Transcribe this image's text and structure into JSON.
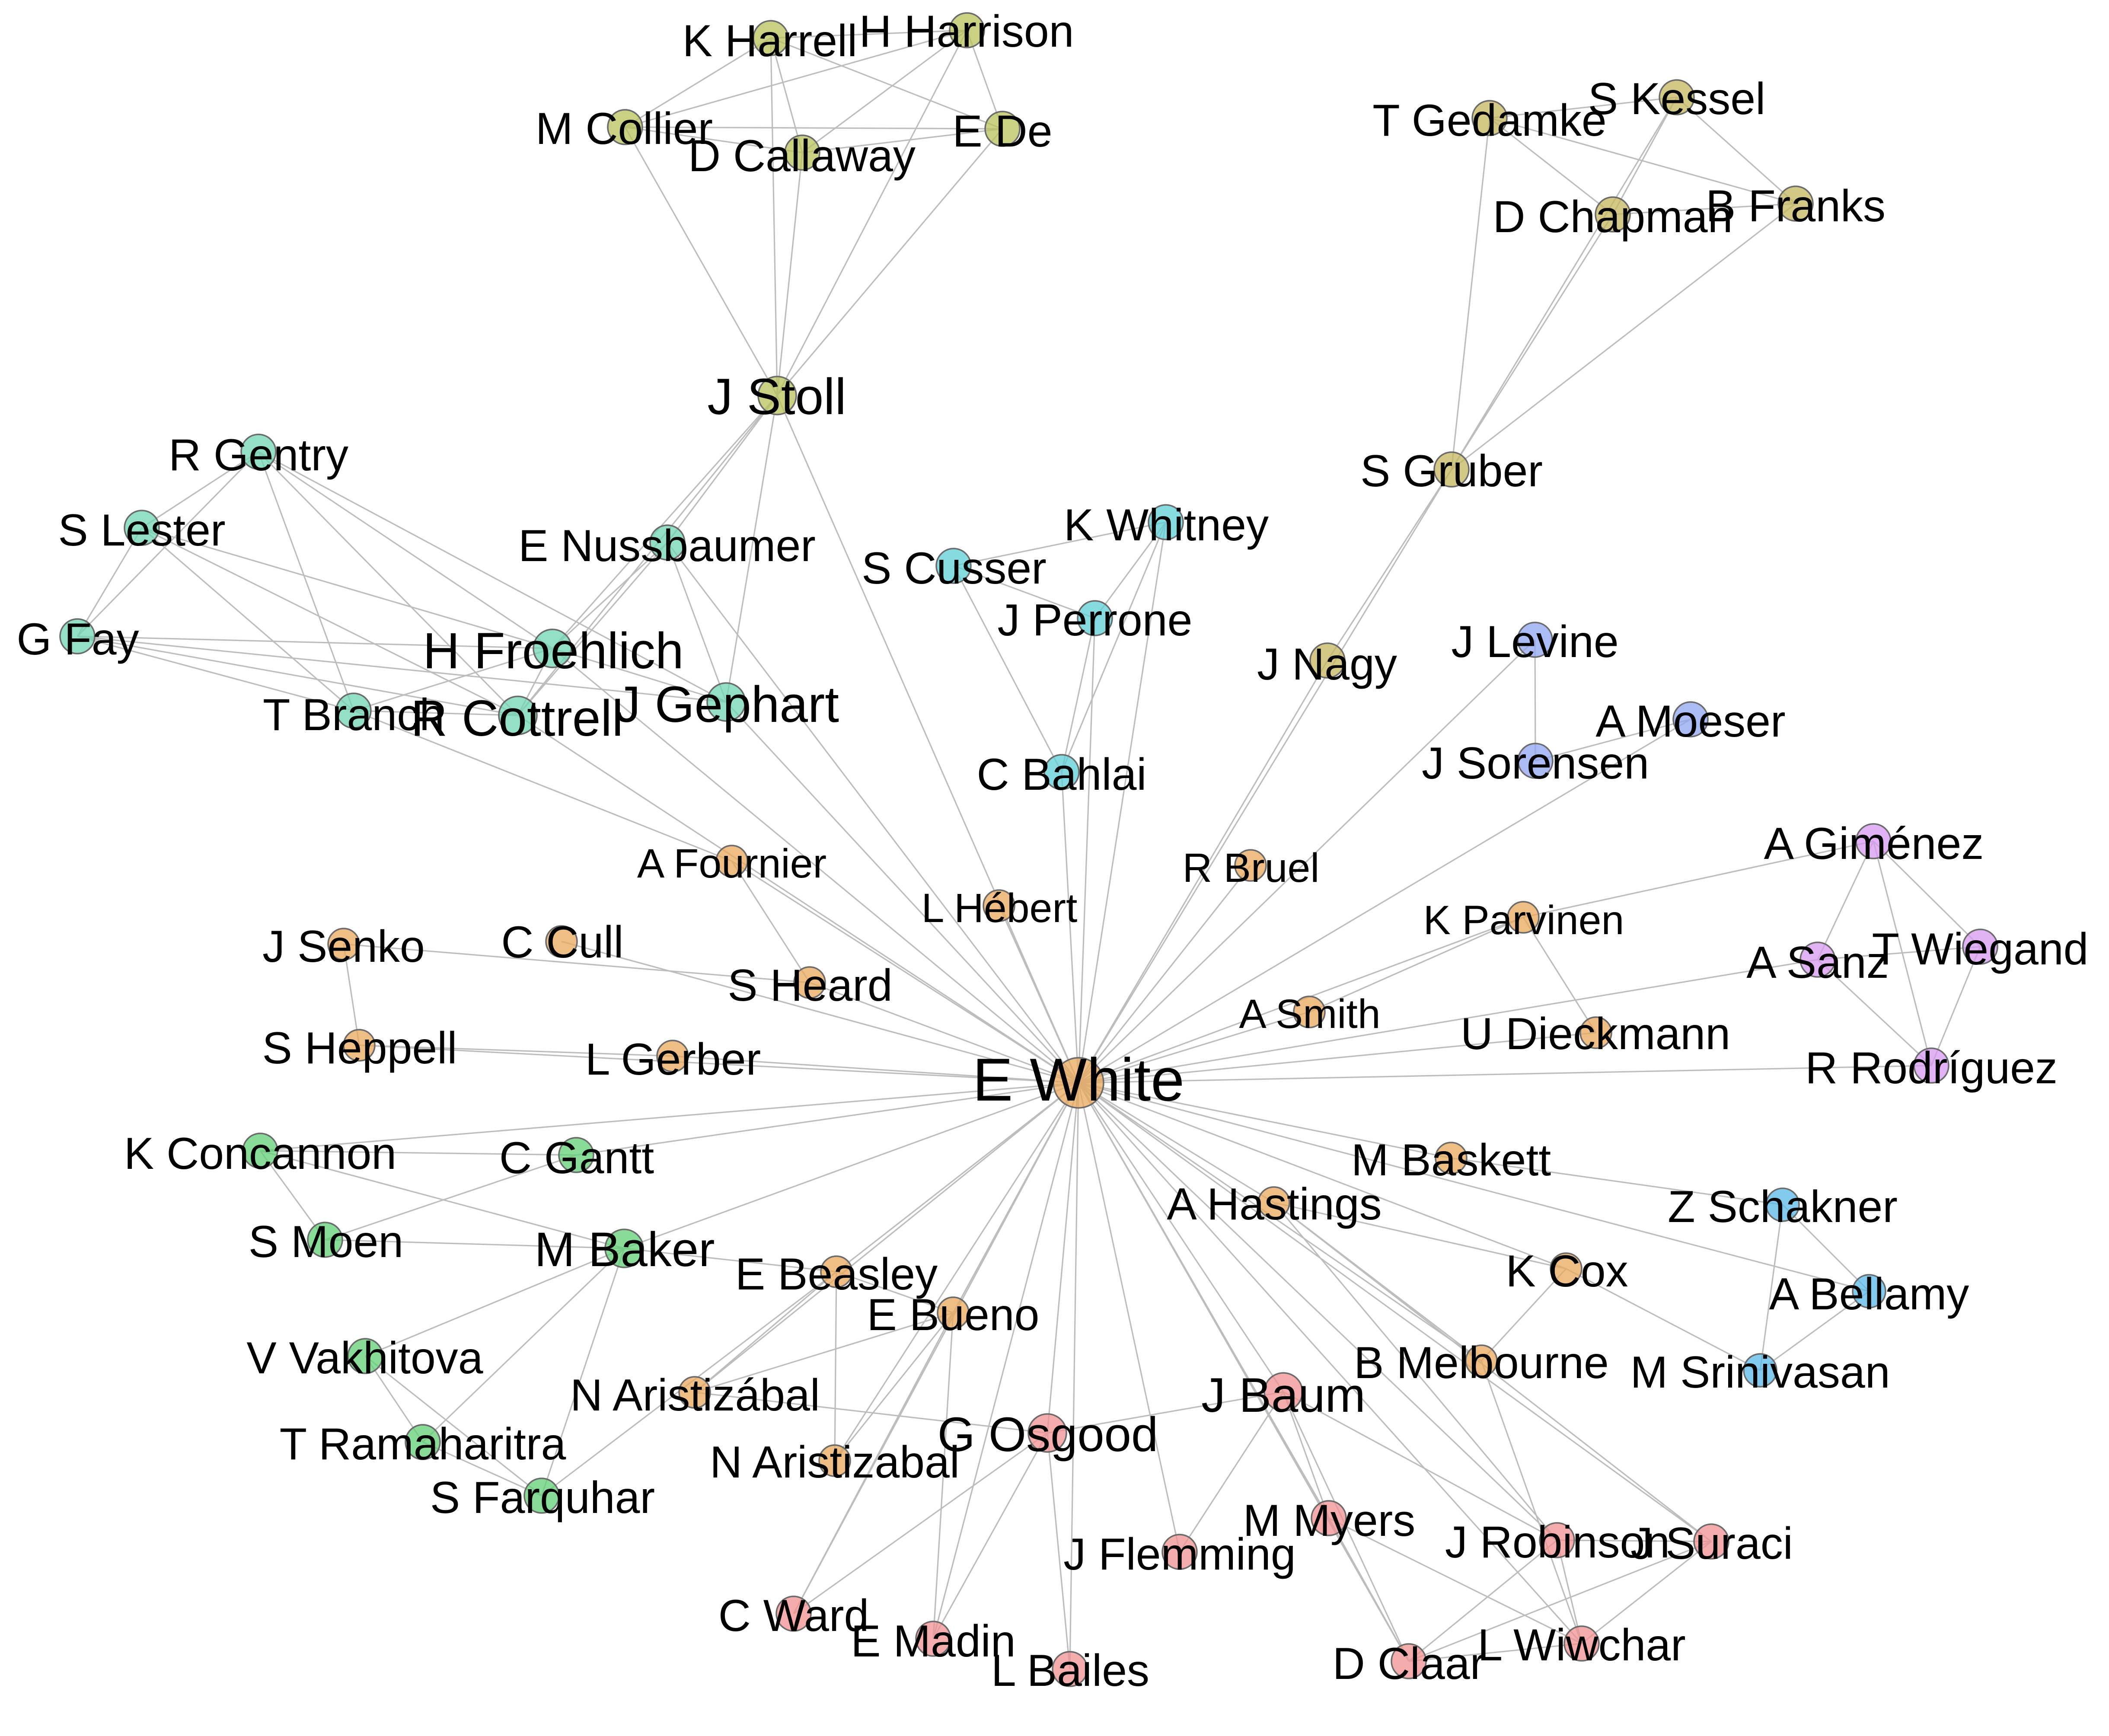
{
  "diagram": {
    "type": "network",
    "group_colors": {
      "orange": "#e8a85c",
      "olive": "#b8c25a",
      "khaki": "#c4b65c",
      "teal": "#6fd6b4",
      "cyan": "#5dcfd6",
      "blue": "#8fa6f0",
      "purple": "#d89af0",
      "sky": "#5ab8ea",
      "green": "#62cf76",
      "pink": "#f19090"
    },
    "nodes": [
      {
        "id": "ewhite",
        "label": "E White",
        "group": "orange"
      },
      {
        "id": "kharrell",
        "label": "K Harrell",
        "group": "olive"
      },
      {
        "id": "hharrison",
        "label": "H Harrison",
        "group": "olive"
      },
      {
        "id": "mcollier",
        "label": "M Collier",
        "group": "olive"
      },
      {
        "id": "dcallaway",
        "label": "D Callaway",
        "group": "olive"
      },
      {
        "id": "ede",
        "label": "E De",
        "group": "olive"
      },
      {
        "id": "jstoll",
        "label": "J Stoll",
        "group": "olive"
      },
      {
        "id": "tgedamke",
        "label": "T Gedamke",
        "group": "khaki"
      },
      {
        "id": "skessel",
        "label": "S Kessel",
        "group": "khaki"
      },
      {
        "id": "dchapman",
        "label": "D Chapman",
        "group": "khaki"
      },
      {
        "id": "bfranks",
        "label": "B Franks",
        "group": "khaki"
      },
      {
        "id": "sgruber",
        "label": "S Gruber",
        "group": "khaki"
      },
      {
        "id": "jnagy",
        "label": "J Nagy",
        "group": "khaki"
      },
      {
        "id": "rgentry",
        "label": "R Gentry",
        "group": "teal"
      },
      {
        "id": "slester",
        "label": "S Lester",
        "group": "teal"
      },
      {
        "id": "gfay",
        "label": "G Fay",
        "group": "teal"
      },
      {
        "id": "enussbaumer",
        "label": "E Nussbaumer",
        "group": "teal"
      },
      {
        "id": "hfroehlich",
        "label": "H Froehlich",
        "group": "teal"
      },
      {
        "id": "tbranch",
        "label": "T Branch",
        "group": "teal"
      },
      {
        "id": "rcottrell",
        "label": "R Cottrell",
        "group": "teal"
      },
      {
        "id": "jgephart",
        "label": "J Gephart",
        "group": "teal"
      },
      {
        "id": "kwhitney",
        "label": "K Whitney",
        "group": "cyan"
      },
      {
        "id": "scusser",
        "label": "S Cusser",
        "group": "cyan"
      },
      {
        "id": "jperrone",
        "label": "J Perrone",
        "group": "cyan"
      },
      {
        "id": "cbahlai",
        "label": "C Bahlai",
        "group": "cyan"
      },
      {
        "id": "jlevine",
        "label": "J Levine",
        "group": "blue"
      },
      {
        "id": "amoeser",
        "label": "A Moeser",
        "group": "blue"
      },
      {
        "id": "jsorensen",
        "label": "J Sorensen",
        "group": "blue"
      },
      {
        "id": "agimenez",
        "label": "A Giménez",
        "group": "purple"
      },
      {
        "id": "asanz",
        "label": "A Sanz",
        "group": "purple"
      },
      {
        "id": "twiegand",
        "label": "T Wiegand",
        "group": "purple"
      },
      {
        "id": "rrodriguez",
        "label": "R Rodríguez",
        "group": "purple"
      },
      {
        "id": "afournier",
        "label": "A Fournier",
        "group": "orange"
      },
      {
        "id": "lhebert",
        "label": "L Hébert",
        "group": "orange"
      },
      {
        "id": "rbruel",
        "label": "R Bruel",
        "group": "orange"
      },
      {
        "id": "kparvinen",
        "label": "K Parvinen",
        "group": "orange"
      },
      {
        "id": "jsenko",
        "label": "J Senko",
        "group": "orange"
      },
      {
        "id": "ccull",
        "label": "C Cull",
        "group": "orange"
      },
      {
        "id": "sheard",
        "label": "S Heard",
        "group": "orange"
      },
      {
        "id": "asmith",
        "label": "A Smith",
        "group": "orange"
      },
      {
        "id": "udieckmann",
        "label": "U Dieckmann",
        "group": "orange"
      },
      {
        "id": "sheppell",
        "label": "S Heppell",
        "group": "orange"
      },
      {
        "id": "lgerber",
        "label": "L Gerber",
        "group": "orange"
      },
      {
        "id": "mbaskett",
        "label": "M Baskett",
        "group": "orange"
      },
      {
        "id": "ahastings",
        "label": "A Hastings",
        "group": "orange"
      },
      {
        "id": "kcox",
        "label": "K Cox",
        "group": "orange"
      },
      {
        "id": "bmelbourne",
        "label": "B Melbourne",
        "group": "orange"
      },
      {
        "id": "ebeasley",
        "label": "E Beasley",
        "group": "orange"
      },
      {
        "id": "ebueno",
        "label": "E Bueno",
        "group": "orange"
      },
      {
        "id": "naristizabal1",
        "label": "N Aristizábal",
        "group": "orange"
      },
      {
        "id": "naristizabal2",
        "label": "N Aristizabal",
        "group": "orange"
      },
      {
        "id": "zschakner",
        "label": "Z Schakner",
        "group": "sky"
      },
      {
        "id": "abellamy",
        "label": "A Bellamy",
        "group": "sky"
      },
      {
        "id": "msrinivasan",
        "label": "M Srinivasan",
        "group": "sky"
      },
      {
        "id": "kconcannon",
        "label": "K Concannon",
        "group": "green"
      },
      {
        "id": "cgantt",
        "label": "C Gantt",
        "group": "green"
      },
      {
        "id": "smoen",
        "label": "S Moen",
        "group": "green"
      },
      {
        "id": "mbaker",
        "label": "M Baker",
        "group": "green"
      },
      {
        "id": "vvakhitova",
        "label": "V Vakhitova",
        "group": "green"
      },
      {
        "id": "tramaharitra",
        "label": "T Ramaharitra",
        "group": "green"
      },
      {
        "id": "sfarquhar",
        "label": "S Farquhar",
        "group": "green"
      },
      {
        "id": "jbaum",
        "label": "J Baum",
        "group": "pink"
      },
      {
        "id": "gosgood",
        "label": "G Osgood",
        "group": "pink"
      },
      {
        "id": "mmyers",
        "label": "M Myers",
        "group": "pink"
      },
      {
        "id": "jflemming",
        "label": "J Flemming",
        "group": "pink"
      },
      {
        "id": "jrobinson",
        "label": "J Robinson",
        "group": "pink"
      },
      {
        "id": "jsuraci",
        "label": "J Suraci",
        "group": "pink"
      },
      {
        "id": "cward",
        "label": "C Ward",
        "group": "pink"
      },
      {
        "id": "emadin",
        "label": "E Madin",
        "group": "pink"
      },
      {
        "id": "lbailes",
        "label": "L Bailes",
        "group": "pink"
      },
      {
        "id": "dclaar",
        "label": "D Claar",
        "group": "pink"
      },
      {
        "id": "lwiwchar",
        "label": "L Wiwchar",
        "group": "pink"
      }
    ],
    "edges": [
      [
        "kharrell",
        "hharrison"
      ],
      [
        "kharrell",
        "mcollier"
      ],
      [
        "kharrell",
        "dcallaway"
      ],
      [
        "kharrell",
        "ede"
      ],
      [
        "kharrell",
        "jstoll"
      ],
      [
        "hharrison",
        "mcollier"
      ],
      [
        "hharrison",
        "dcallaway"
      ],
      [
        "hharrison",
        "ede"
      ],
      [
        "hharrison",
        "jstoll"
      ],
      [
        "mcollier",
        "dcallaway"
      ],
      [
        "mcollier",
        "ede"
      ],
      [
        "mcollier",
        "jstoll"
      ],
      [
        "dcallaway",
        "ede"
      ],
      [
        "dcallaway",
        "jstoll"
      ],
      [
        "ede",
        "jstoll"
      ],
      [
        "jstoll",
        "hfroehlich"
      ],
      [
        "jstoll",
        "rcottrell"
      ],
      [
        "jstoll",
        "enussbaumer"
      ],
      [
        "jstoll",
        "jgephart"
      ],
      [
        "jstoll",
        "ewhite"
      ],
      [
        "tgedamke",
        "skessel"
      ],
      [
        "tgedamke",
        "dchapman"
      ],
      [
        "tgedamke",
        "bfranks"
      ],
      [
        "tgedamke",
        "sgruber"
      ],
      [
        "skessel",
        "dchapman"
      ],
      [
        "skessel",
        "bfranks"
      ],
      [
        "skessel",
        "sgruber"
      ],
      [
        "dchapman",
        "bfranks"
      ],
      [
        "dchapman",
        "sgruber"
      ],
      [
        "bfranks",
        "sgruber"
      ],
      [
        "sgruber",
        "jnagy"
      ],
      [
        "sgruber",
        "ewhite"
      ],
      [
        "jnagy",
        "ewhite"
      ],
      [
        "rgentry",
        "slester"
      ],
      [
        "rgentry",
        "gfay"
      ],
      [
        "rgentry",
        "hfroehlich"
      ],
      [
        "rgentry",
        "tbranch"
      ],
      [
        "rgentry",
        "rcottrell"
      ],
      [
        "rgentry",
        "jgephart"
      ],
      [
        "slester",
        "gfay"
      ],
      [
        "slester",
        "hfroehlich"
      ],
      [
        "slester",
        "tbranch"
      ],
      [
        "slester",
        "rcottrell"
      ],
      [
        "gfay",
        "hfroehlich"
      ],
      [
        "gfay",
        "tbranch"
      ],
      [
        "gfay",
        "rcottrell"
      ],
      [
        "gfay",
        "jgephart"
      ],
      [
        "enussbaumer",
        "hfroehlich"
      ],
      [
        "enussbaumer",
        "rcottrell"
      ],
      [
        "enussbaumer",
        "jgephart"
      ],
      [
        "enussbaumer",
        "ewhite"
      ],
      [
        "hfroehlich",
        "tbranch"
      ],
      [
        "hfroehlich",
        "rcottrell"
      ],
      [
        "hfroehlich",
        "jgephart"
      ],
      [
        "hfroehlich",
        "ewhite"
      ],
      [
        "tbranch",
        "rcottrell"
      ],
      [
        "tbranch",
        "afournier"
      ],
      [
        "rcottrell",
        "ewhite"
      ],
      [
        "jgephart",
        "ewhite"
      ],
      [
        "kwhitney",
        "scusser"
      ],
      [
        "kwhitney",
        "jperrone"
      ],
      [
        "kwhitney",
        "cbahlai"
      ],
      [
        "kwhitney",
        "ewhite"
      ],
      [
        "scusser",
        "jperrone"
      ],
      [
        "scusser",
        "cbahlai"
      ],
      [
        "jperrone",
        "cbahlai"
      ],
      [
        "jperrone",
        "ewhite"
      ],
      [
        "cbahlai",
        "ewhite"
      ],
      [
        "jlevine",
        "jsorensen"
      ],
      [
        "jlevine",
        "ewhite"
      ],
      [
        "amoeser",
        "jsorensen"
      ],
      [
        "amoeser",
        "ewhite"
      ],
      [
        "agimenez",
        "asanz"
      ],
      [
        "agimenez",
        "twiegand"
      ],
      [
        "agimenez",
        "rrodriguez"
      ],
      [
        "agimenez",
        "kparvinen"
      ],
      [
        "asanz",
        "twiegand"
      ],
      [
        "asanz",
        "rrodriguez"
      ],
      [
        "asanz",
        "ewhite"
      ],
      [
        "twiegand",
        "rrodriguez"
      ],
      [
        "rrodriguez",
        "ewhite"
      ],
      [
        "afournier",
        "sheard"
      ],
      [
        "afournier",
        "ewhite"
      ],
      [
        "lhebert",
        "ewhite"
      ],
      [
        "rbruel",
        "ewhite"
      ],
      [
        "kparvinen",
        "udieckmann"
      ],
      [
        "kparvinen",
        "asmith"
      ],
      [
        "kparvinen",
        "ewhite"
      ],
      [
        "jsenko",
        "sheppell"
      ],
      [
        "jsenko",
        "sheard"
      ],
      [
        "ccull",
        "ewhite"
      ],
      [
        "sheard",
        "ewhite"
      ],
      [
        "asmith",
        "ewhite"
      ],
      [
        "udieckmann",
        "ewhite"
      ],
      [
        "sheppell",
        "lgerber"
      ],
      [
        "sheppell",
        "ewhite"
      ],
      [
        "lgerber",
        "ewhite"
      ],
      [
        "mbaskett",
        "ewhite"
      ],
      [
        "mbaskett",
        "zschakner"
      ],
      [
        "ahastings",
        "ewhite"
      ],
      [
        "ahastings",
        "kcox"
      ],
      [
        "ahastings",
        "bmelbourne"
      ],
      [
        "ahastings",
        "jsuraci"
      ],
      [
        "ahastings",
        "jrobinson"
      ],
      [
        "kcox",
        "ewhite"
      ],
      [
        "kcox",
        "bmelbourne"
      ],
      [
        "kcox",
        "msrinivasan"
      ],
      [
        "bmelbourne",
        "ewhite"
      ],
      [
        "bmelbourne",
        "lwiwchar"
      ],
      [
        "ebeasley",
        "ewhite"
      ],
      [
        "ebeasley",
        "ebueno"
      ],
      [
        "ebeasley",
        "naristizabal1"
      ],
      [
        "ebeasley",
        "naristizabal2"
      ],
      [
        "ebeasley",
        "mbaker"
      ],
      [
        "ebueno",
        "ewhite"
      ],
      [
        "ebueno",
        "naristizabal1"
      ],
      [
        "ebueno",
        "naristizabal2"
      ],
      [
        "ebueno",
        "cward"
      ],
      [
        "ebueno",
        "emadin"
      ],
      [
        "naristizabal1",
        "ewhite"
      ],
      [
        "naristizabal1",
        "gosgood"
      ],
      [
        "naristizabal2",
        "ewhite"
      ],
      [
        "zschakner",
        "abellamy"
      ],
      [
        "zschakner",
        "msrinivasan"
      ],
      [
        "abellamy",
        "msrinivasan"
      ],
      [
        "abellamy",
        "ewhite"
      ],
      [
        "kconcannon",
        "cgantt"
      ],
      [
        "kconcannon",
        "smoen"
      ],
      [
        "kconcannon",
        "mbaker"
      ],
      [
        "kconcannon",
        "ewhite"
      ],
      [
        "cgantt",
        "smoen"
      ],
      [
        "cgantt",
        "ewhite"
      ],
      [
        "smoen",
        "mbaker"
      ],
      [
        "mbaker",
        "ewhite"
      ],
      [
        "mbaker",
        "vvakhitova"
      ],
      [
        "mbaker",
        "tramaharitra"
      ],
      [
        "mbaker",
        "sfarquhar"
      ],
      [
        "vvakhitova",
        "tramaharitra"
      ],
      [
        "vvakhitova",
        "sfarquhar"
      ],
      [
        "tramaharitra",
        "sfarquhar"
      ],
      [
        "sfarquhar",
        "ebeasley"
      ],
      [
        "jbaum",
        "gosgood"
      ],
      [
        "jbaum",
        "mmyers"
      ],
      [
        "jbaum",
        "jflemming"
      ],
      [
        "jbaum",
        "dclaar"
      ],
      [
        "jbaum",
        "jrobinson"
      ],
      [
        "jbaum",
        "ewhite"
      ],
      [
        "gosgood",
        "ewhite"
      ],
      [
        "gosgood",
        "cward"
      ],
      [
        "gosgood",
        "emadin"
      ],
      [
        "gosgood",
        "lbailes"
      ],
      [
        "mmyers",
        "dclaar"
      ],
      [
        "mmyers",
        "lwiwchar"
      ],
      [
        "mmyers",
        "ewhite"
      ],
      [
        "jrobinson",
        "jsuraci"
      ],
      [
        "jrobinson",
        "lwiwchar"
      ],
      [
        "jrobinson",
        "dclaar"
      ],
      [
        "jrobinson",
        "ewhite"
      ],
      [
        "jsuraci",
        "lwiwchar"
      ],
      [
        "jsuraci",
        "dclaar"
      ],
      [
        "jsuraci",
        "ewhite"
      ],
      [
        "lwiwchar",
        "dclaar"
      ],
      [
        "lwiwchar",
        "ewhite"
      ],
      [
        "jflemming",
        "ewhite"
      ],
      [
        "dclaar",
        "ewhite"
      ],
      [
        "cward",
        "ewhite"
      ],
      [
        "emadin",
        "ewhite"
      ],
      [
        "lbailes",
        "ewhite"
      ]
    ]
  }
}
